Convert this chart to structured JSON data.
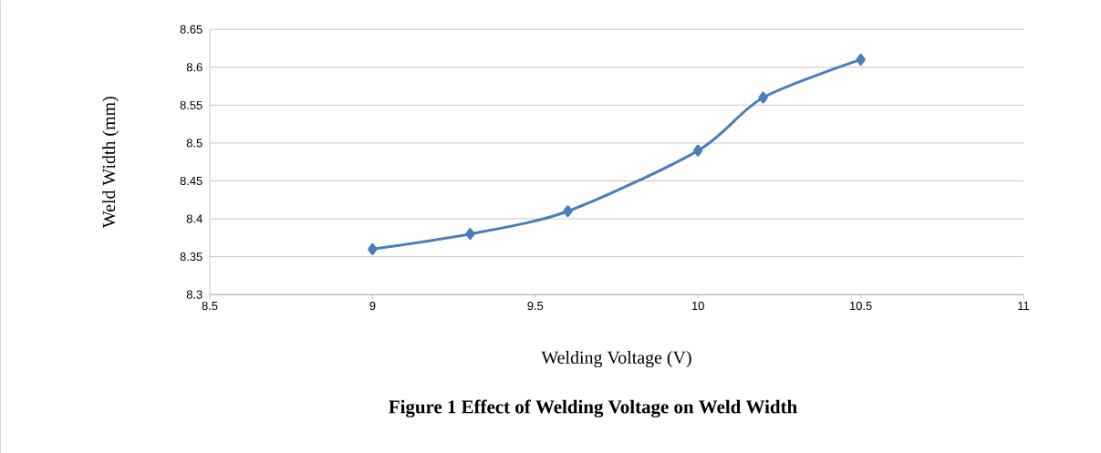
{
  "chart_data": {
    "type": "line",
    "title": "Figure 1 Effect of Welding Voltage on Weld Width",
    "xlabel": "Welding  Voltage  (V)",
    "ylabel": "Weld Width (mm)",
    "x": [
      9,
      9.3,
      9.6,
      10,
      10.2,
      10.5
    ],
    "series": [
      {
        "color": "#4a7ebb",
        "values": [
          8.36,
          8.38,
          8.41,
          8.49,
          8.56,
          8.61
        ]
      }
    ],
    "xlim": [
      8.5,
      11
    ],
    "xticks": [
      8.5,
      9,
      9.5,
      10,
      10.5,
      11
    ],
    "ylim": [
      8.3,
      8.65
    ],
    "yticks": [
      8.3,
      8.35,
      8.4,
      8.45,
      8.5,
      8.55,
      8.6,
      8.65
    ],
    "grid": "y",
    "marker": "diamond",
    "line_style": "solid"
  }
}
